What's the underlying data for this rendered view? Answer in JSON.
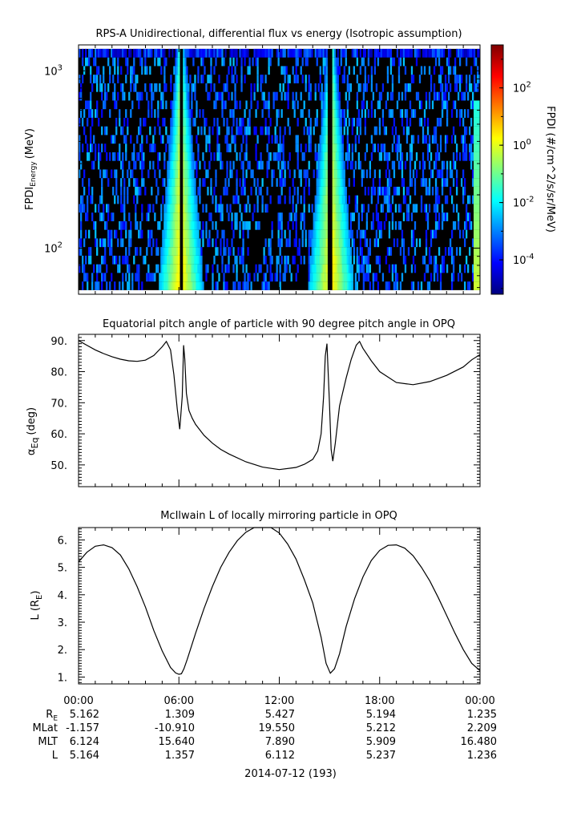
{
  "panels": [
    {
      "title": "RPS-A Unidirectional, differential flux vs energy (Isotropic assumption)",
      "ylabel_main": "FPDI",
      "ylabel_sub": "Energy",
      "ylabel_unit": "(MeV)",
      "yticks": [
        {
          "label": "10",
          "exp": "2",
          "value": 100
        },
        {
          "label": "10",
          "exp": "3",
          "value": 1000
        }
      ]
    },
    {
      "title": "Equatorial pitch angle of particle with 90 degree pitch angle in OPQ",
      "ylabel_main": "α",
      "ylabel_sub": "Eq",
      "ylabel_unit": "(deg)",
      "yticks": [
        "90.",
        "80.",
        "70.",
        "60.",
        "50."
      ]
    },
    {
      "title": "McIlwain L of locally mirroring particle in OPQ",
      "ylabel_main": "L (R",
      "ylabel_sub": "E",
      "ylabel_unit": ")",
      "yticks": [
        "6.",
        "5.",
        "4.",
        "3.",
        "2.",
        "1."
      ]
    }
  ],
  "colorbar": {
    "label": "FPDI (#/cm^2/s/sr/MeV)",
    "ticks": [
      {
        "label": "10",
        "exp": "2",
        "value": 2
      },
      {
        "label": "10",
        "exp": "0",
        "value": 0
      },
      {
        "label": "10",
        "exp": "-2",
        "value": -2
      },
      {
        "label": "10",
        "exp": "-4",
        "value": -4
      }
    ],
    "range_log10": [
      -5.2,
      3.5
    ],
    "colormap": [
      "#00007f",
      "#0000ff",
      "#007fff",
      "#00ffff",
      "#7fff7f",
      "#ffff00",
      "#ff7f00",
      "#ff0000",
      "#7f0000"
    ]
  },
  "time_axis": {
    "tick_labels": [
      "00:00",
      "06:00",
      "12:00",
      "18:00",
      "00:00"
    ],
    "date_label": "2014-07-12 (193)"
  },
  "ephemeris": {
    "rows": [
      {
        "label": "R",
        "label_sub": "E",
        "values": [
          "5.162",
          "1.309",
          "5.427",
          "5.194",
          "1.235"
        ]
      },
      {
        "label": "MLat",
        "label_sub": "",
        "values": [
          "-1.157",
          "-10.910",
          "19.550",
          "5.212",
          "2.209"
        ]
      },
      {
        "label": "MLT",
        "label_sub": "",
        "values": [
          "6.124",
          "15.640",
          "7.890",
          "5.909",
          "16.480"
        ]
      },
      {
        "label": "L",
        "label_sub": "",
        "values": [
          "5.164",
          "1.357",
          "6.112",
          "5.237",
          "1.236"
        ]
      }
    ]
  },
  "chart_data": [
    {
      "type": "heatmap",
      "title": "RPS-A Unidirectional, differential flux vs energy (Isotropic assumption)",
      "xlabel": "",
      "ylabel": "FPDI Energy (MeV)",
      "ylog": true,
      "ylim": [
        55,
        1400
      ],
      "xlim_hours": [
        0,
        24
      ],
      "energy_range_MeV": [
        58,
        1330
      ],
      "peaks_hours": [
        6.12,
        15.1
      ],
      "perigee_gaps_hours": [
        6.12,
        15.0
      ],
      "zlog": true,
      "zlim_log10": [
        -5.2,
        3.5
      ],
      "zlabel": "FPDI (#/cm^2/s/sr/MeV)"
    },
    {
      "type": "line",
      "title": "Equatorial pitch angle of particle with 90 degree pitch angle in OPQ",
      "xlabel": "",
      "ylabel": "αEq (deg)",
      "ylim": [
        43,
        92
      ],
      "x_hours": [
        0,
        0.5,
        1,
        1.5,
        2,
        2.5,
        3,
        3.5,
        4,
        4.5,
        5,
        5.25,
        5.5,
        5.7,
        5.9,
        6.05,
        6.2,
        6.28,
        6.35,
        6.45,
        6.6,
        6.8,
        7,
        7.5,
        8,
        8.5,
        9,
        10,
        11,
        12,
        13,
        13.5,
        14,
        14.3,
        14.5,
        14.65,
        14.75,
        14.85,
        15,
        15.1,
        15.2,
        15.35,
        15.6,
        16,
        16.3,
        16.6,
        16.8,
        17,
        17.5,
        18,
        19,
        20,
        21,
        22,
        23,
        23.5,
        24
      ],
      "y_deg": [
        90,
        88.5,
        87,
        85.8,
        84.8,
        84,
        83.5,
        83.3,
        83.7,
        85.2,
        88,
        89.7,
        87,
        79,
        68,
        61.5,
        72,
        88.5,
        84,
        73,
        67.5,
        65,
        63,
        59.5,
        57,
        55,
        53.5,
        51,
        49.3,
        48.5,
        49.2,
        50.2,
        51.8,
        54.5,
        60,
        72,
        85,
        89,
        70,
        55,
        51.2,
        57,
        69,
        78,
        84,
        88.5,
        89.7,
        87.5,
        83.5,
        80,
        76.5,
        75.8,
        76.8,
        78.8,
        81.5,
        83.8,
        85.5
      ]
    },
    {
      "type": "line",
      "title": "McIlwain L of locally mirroring particle in OPQ",
      "xlabel": "",
      "ylabel": "L (RE)",
      "ylim": [
        0.75,
        6.45
      ],
      "x_hours": [
        0,
        0.5,
        1,
        1.5,
        2,
        2.5,
        3,
        3.5,
        4,
        4.5,
        5,
        5.5,
        5.8,
        6,
        6.15,
        6.3,
        6.5,
        7,
        7.5,
        8,
        8.5,
        9,
        9.5,
        10,
        10.5,
        11,
        11.5,
        12,
        12.5,
        13,
        13.5,
        14,
        14.5,
        14.8,
        15.05,
        15.3,
        15.6,
        16,
        16.5,
        17,
        17.5,
        18,
        18.5,
        19,
        19.5,
        20,
        20.5,
        21,
        21.5,
        22,
        22.5,
        23,
        23.5,
        24
      ],
      "y_L": [
        5.2,
        5.55,
        5.77,
        5.82,
        5.72,
        5.45,
        4.95,
        4.3,
        3.55,
        2.7,
        1.95,
        1.35,
        1.15,
        1.1,
        1.12,
        1.3,
        1.65,
        2.6,
        3.5,
        4.3,
        5.0,
        5.55,
        5.98,
        6.28,
        6.46,
        6.55,
        6.48,
        6.25,
        5.85,
        5.3,
        4.55,
        3.7,
        2.45,
        1.5,
        1.14,
        1.3,
        1.85,
        2.85,
        3.85,
        4.65,
        5.25,
        5.62,
        5.8,
        5.82,
        5.7,
        5.42,
        5.0,
        4.5,
        3.9,
        3.25,
        2.6,
        2.0,
        1.5,
        1.23
      ]
    }
  ]
}
